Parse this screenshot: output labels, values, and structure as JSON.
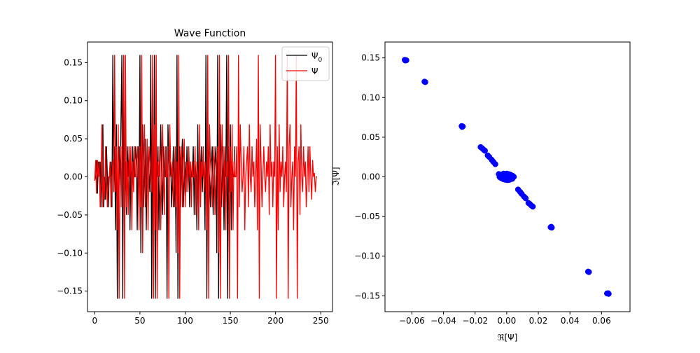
{
  "chart_data": [
    {
      "type": "line",
      "title": "Wave Function",
      "xlabel": "",
      "ylabel": "",
      "xlim": [
        -8,
        263
      ],
      "ylim": [
        -0.177,
        0.177
      ],
      "xticks": [
        0,
        50,
        100,
        150,
        200,
        250
      ],
      "xtick_labels": [
        "0",
        "50",
        "100",
        "150",
        "200",
        "250"
      ],
      "yticks": [
        -0.15,
        -0.1,
        -0.05,
        0.0,
        0.05,
        0.1,
        0.15
      ],
      "ytick_labels": [
        "−0.15",
        "−0.10",
        "−0.05",
        "0.00",
        "0.05",
        "0.10",
        "0.15"
      ],
      "grid": false,
      "legend": {
        "position": "upper right",
        "entries": [
          {
            "label_base": "Ψ",
            "label_sub": "0",
            "color": "#000000"
          },
          {
            "label_base": "Ψ",
            "label_sub": "",
            "color": "#ff0000"
          }
        ]
      },
      "series": [
        {
          "name": "Ψ0",
          "color": "#000000",
          "x_start": 0,
          "x_step": 1,
          "values": [
            -0.005,
            0.0,
            0.022,
            -0.022,
            0.02,
            0.0,
            0.02,
            -0.04,
            0.0,
            0.069,
            -0.04,
            0.0,
            -0.03,
            0.04,
            0.0,
            -0.04,
            0.0,
            0.0,
            0.02,
            -0.04,
            0.16,
            -0.02,
            0.04,
            -0.07,
            0.069,
            -0.16,
            0.02,
            0.04,
            -0.04,
            0.069,
            0.16,
            -0.16,
            0.16,
            -0.04,
            0.02,
            -0.05,
            0.04,
            0.0,
            0.04,
            -0.07,
            0.02,
            -0.02,
            0.04,
            0.0,
            0.0,
            0.04,
            0.02,
            -0.07,
            0.04,
            -0.04,
            0.16,
            -0.1,
            0.02,
            0.069,
            -0.04,
            0.0,
            0.05,
            -0.07,
            0.04,
            0.02,
            0.0,
            -0.02,
            0.16,
            -0.16,
            0.069,
            -0.07,
            0.16,
            -0.16,
            0.02,
            0.0,
            0.04,
            -0.07,
            0.0,
            0.069,
            0.0,
            -0.05,
            0.04,
            0.0,
            0.0,
            0.04,
            -0.16,
            0.069,
            0.02,
            0.0,
            0.02,
            -0.04,
            0.0,
            0.04,
            -0.04,
            0.02,
            -0.1,
            0.16,
            -0.16,
            0.02,
            0.04,
            -0.04,
            0.02,
            0.05,
            -0.04,
            0.0,
            0.02,
            -0.02,
            0.04,
            0.0,
            0.02,
            -0.04,
            0.02,
            0.0,
            0.0,
            0.04,
            -0.05,
            0.02,
            0.0,
            -0.07,
            0.069,
            -0.04,
            0.02,
            0.0,
            0.04,
            -0.02,
            0.02,
            0.0,
            -0.07,
            0.16,
            -0.16,
            0.069,
            0.02,
            0.0,
            -0.04,
            0.02,
            0.04,
            -0.05,
            0.0,
            0.02,
            0.04,
            -0.1,
            0.16,
            -0.16,
            0.02,
            0.069,
            -0.04,
            0.0,
            0.04,
            -0.07,
            0.02,
            0.0,
            0.16,
            -0.16,
            0.04,
            -0.02,
            0.069,
            -0.07,
            0.02,
            0.0,
            0.0,
            0.04
          ],
          "visible_under_overlay": false
        },
        {
          "name": "Ψ",
          "color": "#ff0000",
          "x_start": 0,
          "x_step": 1,
          "values": [
            -0.005,
            0.022,
            -0.022,
            0.022,
            0.0,
            0.02,
            -0.04,
            0.0,
            0.069,
            -0.04,
            0.0,
            -0.03,
            0.04,
            0.0,
            -0.04,
            0.0,
            0.0,
            0.02,
            -0.04,
            0.0,
            0.022,
            -0.02,
            0.16,
            -0.02,
            0.04,
            -0.07,
            0.069,
            -0.16,
            0.02,
            0.04,
            -0.04,
            0.069,
            0.16,
            -0.16,
            0.16,
            -0.04,
            0.02,
            -0.05,
            0.04,
            0.0,
            0.04,
            -0.07,
            0.02,
            -0.02,
            0.04,
            0.0,
            0.0,
            0.04,
            0.02,
            -0.07,
            0.04,
            -0.04,
            0.16,
            -0.1,
            0.02,
            0.069,
            -0.04,
            0.0,
            0.05,
            -0.07,
            0.04,
            0.02,
            0.0,
            -0.02,
            0.16,
            -0.16,
            0.069,
            -0.07,
            0.16,
            -0.16,
            0.02,
            0.0,
            0.04,
            -0.07,
            0.0,
            0.069,
            0.0,
            -0.05,
            0.04,
            0.0,
            0.0,
            0.04,
            -0.16,
            0.069,
            0.02,
            0.0,
            0.02,
            -0.04,
            0.0,
            0.04,
            -0.04,
            0.02,
            -0.1,
            0.16,
            -0.16,
            0.02,
            0.04,
            -0.04,
            0.02,
            0.05,
            -0.04,
            0.0,
            0.02,
            -0.02,
            0.04,
            0.0,
            0.02,
            -0.04,
            0.02,
            0.0,
            0.0,
            0.04,
            -0.05,
            0.02,
            0.0,
            -0.07,
            0.069,
            -0.04,
            0.02,
            0.0,
            0.04,
            -0.02,
            0.02,
            0.0,
            -0.07,
            0.16,
            -0.16,
            0.069,
            0.02,
            0.0,
            -0.04,
            0.02,
            0.04,
            -0.05,
            0.0,
            0.02,
            0.04,
            -0.1,
            0.16,
            -0.16,
            0.02,
            0.069,
            -0.04,
            0.0,
            0.04,
            -0.07,
            0.02,
            0.0,
            0.16,
            -0.16,
            0.04,
            -0.02,
            0.069,
            -0.07,
            0.02,
            0.0,
            0.0,
            0.04,
            -0.16,
            0.16,
            -0.04,
            0.069,
            0.02,
            -0.02,
            0.0,
            0.04,
            -0.07,
            0.0,
            0.02,
            0.04,
            -0.04,
            0.069,
            0.0,
            -0.02,
            0.04,
            0.0,
            0.02,
            -0.04,
            0.0,
            0.05,
            -0.07,
            0.16,
            -0.16,
            0.069,
            0.02,
            -0.04,
            0.0,
            0.04,
            0.0,
            -0.02,
            0.02,
            0.0,
            0.04,
            -0.05,
            0.069,
            0.0,
            0.02,
            -0.04,
            0.02,
            0.0,
            0.16,
            -0.16,
            0.04,
            -0.07,
            0.069,
            -0.02,
            0.02,
            0.0,
            0.04,
            -0.04,
            0.0,
            0.02,
            -0.02,
            0.16,
            -0.16,
            0.04,
            0.069,
            -0.04,
            0.0,
            0.02,
            -0.07,
            0.04,
            0.0,
            0.16,
            -0.16,
            0.02,
            0.04,
            -0.05,
            0.069,
            0.0,
            -0.02,
            0.04,
            0.0,
            0.02,
            -0.04,
            0.0,
            0.04,
            -0.02,
            0.04,
            0.0,
            -0.03,
            0.022,
            0.0,
            0.005,
            -0.02,
            0.0,
            0.0
          ]
        }
      ]
    },
    {
      "type": "scatter",
      "title": "",
      "xlabel": "ℜ[Ψ]",
      "ylabel": "ℑ[Ψ]",
      "xlim": [
        -0.077,
        0.078
      ],
      "ylim": [
        -0.17,
        0.17
      ],
      "xticks": [
        -0.06,
        -0.04,
        -0.02,
        0.0,
        0.02,
        0.04,
        0.06
      ],
      "xtick_labels": [
        "−0.06",
        "−0.04",
        "−0.02",
        "0.00",
        "0.02",
        "0.04",
        "0.06"
      ],
      "yticks": [
        -0.15,
        -0.1,
        -0.05,
        0.0,
        0.05,
        0.1,
        0.15
      ],
      "ytick_labels": [
        "−0.15",
        "−0.10",
        "−0.05",
        "0.00",
        "0.05",
        "0.10",
        "0.15"
      ],
      "grid": false,
      "series": [
        {
          "name": "",
          "color": "#0000ff",
          "points": [
            [
              -0.0645,
              0.1475
            ],
            [
              -0.0635,
              0.147
            ],
            [
              -0.0642,
              0.1468
            ],
            [
              -0.052,
              0.12
            ],
            [
              -0.0515,
              0.1195
            ],
            [
              -0.0285,
              0.064
            ],
            [
              -0.0278,
              0.0635
            ],
            [
              -0.0282,
              0.063
            ],
            [
              -0.0165,
              0.0375
            ],
            [
              -0.0155,
              0.036
            ],
            [
              -0.0145,
              0.034
            ],
            [
              -0.0138,
              0.033
            ],
            [
              -0.012,
              0.027
            ],
            [
              -0.011,
              0.025
            ],
            [
              -0.0095,
              0.0215
            ],
            [
              -0.0085,
              0.019
            ],
            [
              -0.0072,
              0.016
            ],
            [
              -0.005,
              0.0035
            ],
            [
              -0.004,
              0.002
            ],
            [
              -0.003,
              0.003
            ],
            [
              -0.002,
              0.004
            ],
            [
              -0.001,
              0.0035
            ],
            [
              0.0,
              0.004
            ],
            [
              0.001,
              0.0035
            ],
            [
              0.002,
              0.003
            ],
            [
              0.003,
              0.002
            ],
            [
              0.004,
              0.001
            ],
            [
              0.0045,
              0.0
            ],
            [
              0.004,
              -0.001
            ],
            [
              0.003,
              -0.002
            ],
            [
              0.002,
              -0.0035
            ],
            [
              0.001,
              -0.004
            ],
            [
              0.0,
              -0.004
            ],
            [
              -0.001,
              -0.0035
            ],
            [
              -0.002,
              -0.003
            ],
            [
              -0.003,
              -0.002
            ],
            [
              -0.004,
              -0.001
            ],
            [
              -0.0045,
              0.0
            ],
            [
              -0.0025,
              0.0008
            ],
            [
              -0.0015,
              -0.0008
            ],
            [
              0.0005,
              0.0012
            ],
            [
              0.0015,
              -0.0012
            ],
            [
              0.0025,
              0.0006
            ],
            [
              -0.0005,
              0.0
            ],
            [
              0.0008,
              -0.0002
            ],
            [
              0.0,
              0.0015
            ],
            [
              0.0,
              -0.0015
            ],
            [
              0.0035,
              -0.0025
            ],
            [
              -0.0035,
              0.0025
            ],
            [
              0.0072,
              -0.016
            ],
            [
              0.0085,
              -0.019
            ],
            [
              0.0095,
              -0.0215
            ],
            [
              0.011,
              -0.025
            ],
            [
              0.012,
              -0.027
            ],
            [
              0.0138,
              -0.033
            ],
            [
              0.0145,
              -0.034
            ],
            [
              0.0155,
              -0.036
            ],
            [
              0.0165,
              -0.0375
            ],
            [
              0.0282,
              -0.063
            ],
            [
              0.0278,
              -0.0635
            ],
            [
              0.0285,
              -0.064
            ],
            [
              0.0515,
              -0.1195
            ],
            [
              0.052,
              -0.12
            ],
            [
              0.0642,
              -0.1468
            ],
            [
              0.0635,
              -0.147
            ],
            [
              0.0645,
              -0.1475
            ]
          ]
        }
      ]
    }
  ]
}
